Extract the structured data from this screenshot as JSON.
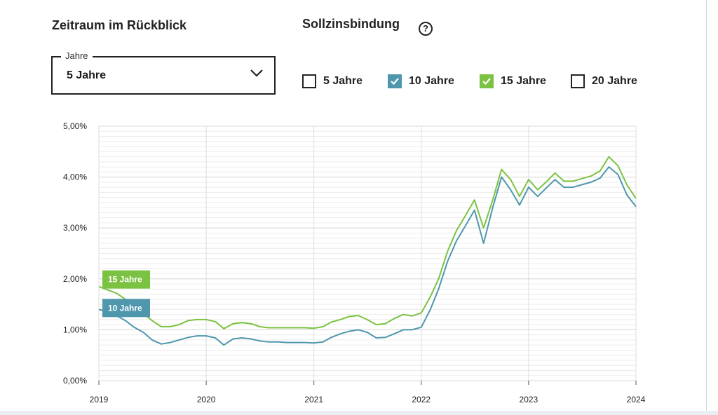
{
  "filters": {
    "range_heading": "Zeitraum im Rückblick",
    "select_legend": "Jahre",
    "select_value": "5 Jahre",
    "binding_heading": "Sollzinsbindung",
    "help_icon": "question-circle-icon",
    "checkboxes": [
      {
        "label": "5 Jahre",
        "checked": false,
        "color": "#ffffff"
      },
      {
        "label": "10 Jahre",
        "checked": true,
        "color": "#4f97ad"
      },
      {
        "label": "15 Jahre",
        "checked": true,
        "color": "#7cc242"
      },
      {
        "label": "20 Jahre",
        "checked": false,
        "color": "#ffffff"
      }
    ]
  },
  "chart_data": {
    "type": "line",
    "x_start": "2019-01-01",
    "x_end": "2024-01-01",
    "xticks": [
      "2019",
      "2020",
      "2021",
      "2022",
      "2023",
      "2024"
    ],
    "ylim": [
      0,
      5
    ],
    "yticks": [
      "0,00%",
      "1,00%",
      "2,00%",
      "3,00%",
      "4,00%",
      "5,00%"
    ],
    "grid": true,
    "series": [
      {
        "name": "15 Jahre",
        "color": "#7cc242",
        "points": [
          [
            "2019-01",
            1.85
          ],
          [
            "2019-02",
            1.78
          ],
          [
            "2019-03",
            1.72
          ],
          [
            "2019-04",
            1.6
          ],
          [
            "2019-05",
            1.48
          ],
          [
            "2019-06",
            1.32
          ],
          [
            "2019-07",
            1.18
          ],
          [
            "2019-08",
            1.06
          ],
          [
            "2019-09",
            1.06
          ],
          [
            "2019-10",
            1.1
          ],
          [
            "2019-11",
            1.18
          ],
          [
            "2019-12",
            1.2
          ],
          [
            "2020-01",
            1.2
          ],
          [
            "2020-02",
            1.16
          ],
          [
            "2020-03",
            1.02
          ],
          [
            "2020-04",
            1.12
          ],
          [
            "2020-05",
            1.14
          ],
          [
            "2020-06",
            1.12
          ],
          [
            "2020-07",
            1.06
          ],
          [
            "2020-08",
            1.04
          ],
          [
            "2020-09",
            1.04
          ],
          [
            "2020-10",
            1.04
          ],
          [
            "2020-11",
            1.04
          ],
          [
            "2020-12",
            1.04
          ],
          [
            "2021-01",
            1.03
          ],
          [
            "2021-02",
            1.06
          ],
          [
            "2021-03",
            1.15
          ],
          [
            "2021-04",
            1.2
          ],
          [
            "2021-05",
            1.26
          ],
          [
            "2021-06",
            1.28
          ],
          [
            "2021-07",
            1.2
          ],
          [
            "2021-08",
            1.1
          ],
          [
            "2021-09",
            1.12
          ],
          [
            "2021-10",
            1.22
          ],
          [
            "2021-11",
            1.3
          ],
          [
            "2021-12",
            1.27
          ],
          [
            "2022-01",
            1.33
          ],
          [
            "2022-02",
            1.65
          ],
          [
            "2022-03",
            2.0
          ],
          [
            "2022-04",
            2.55
          ],
          [
            "2022-05",
            2.95
          ],
          [
            "2022-06",
            3.25
          ],
          [
            "2022-07",
            3.55
          ],
          [
            "2022-08",
            3.0
          ],
          [
            "2022-09",
            3.55
          ],
          [
            "2022-10",
            4.15
          ],
          [
            "2022-11",
            3.95
          ],
          [
            "2022-12",
            3.62
          ],
          [
            "2023-01",
            3.95
          ],
          [
            "2023-02",
            3.75
          ],
          [
            "2023-03",
            3.9
          ],
          [
            "2023-04",
            4.08
          ],
          [
            "2023-05",
            3.92
          ],
          [
            "2023-06",
            3.92
          ],
          [
            "2023-07",
            3.97
          ],
          [
            "2023-08",
            4.02
          ],
          [
            "2023-09",
            4.12
          ],
          [
            "2023-10",
            4.4
          ],
          [
            "2023-11",
            4.22
          ],
          [
            "2023-12",
            3.85
          ],
          [
            "2024-01",
            3.58
          ]
        ]
      },
      {
        "name": "10 Jahre",
        "color": "#4f97ad",
        "points": [
          [
            "2019-01",
            1.4
          ],
          [
            "2019-02",
            1.35
          ],
          [
            "2019-03",
            1.28
          ],
          [
            "2019-04",
            1.18
          ],
          [
            "2019-05",
            1.05
          ],
          [
            "2019-06",
            0.95
          ],
          [
            "2019-07",
            0.8
          ],
          [
            "2019-08",
            0.72
          ],
          [
            "2019-09",
            0.75
          ],
          [
            "2019-10",
            0.8
          ],
          [
            "2019-11",
            0.85
          ],
          [
            "2019-12",
            0.88
          ],
          [
            "2020-01",
            0.88
          ],
          [
            "2020-02",
            0.84
          ],
          [
            "2020-03",
            0.7
          ],
          [
            "2020-04",
            0.82
          ],
          [
            "2020-05",
            0.84
          ],
          [
            "2020-06",
            0.82
          ],
          [
            "2020-07",
            0.78
          ],
          [
            "2020-08",
            0.76
          ],
          [
            "2020-09",
            0.76
          ],
          [
            "2020-10",
            0.75
          ],
          [
            "2020-11",
            0.75
          ],
          [
            "2020-12",
            0.75
          ],
          [
            "2021-01",
            0.74
          ],
          [
            "2021-02",
            0.76
          ],
          [
            "2021-03",
            0.85
          ],
          [
            "2021-04",
            0.92
          ],
          [
            "2021-05",
            0.97
          ],
          [
            "2021-06",
            1.0
          ],
          [
            "2021-07",
            0.95
          ],
          [
            "2021-08",
            0.84
          ],
          [
            "2021-09",
            0.85
          ],
          [
            "2021-10",
            0.92
          ],
          [
            "2021-11",
            1.0
          ],
          [
            "2021-12",
            1.0
          ],
          [
            "2022-01",
            1.05
          ],
          [
            "2022-02",
            1.4
          ],
          [
            "2022-03",
            1.8
          ],
          [
            "2022-04",
            2.35
          ],
          [
            "2022-05",
            2.75
          ],
          [
            "2022-06",
            3.05
          ],
          [
            "2022-07",
            3.35
          ],
          [
            "2022-08",
            2.7
          ],
          [
            "2022-09",
            3.4
          ],
          [
            "2022-10",
            4.0
          ],
          [
            "2022-11",
            3.75
          ],
          [
            "2022-12",
            3.45
          ],
          [
            "2023-01",
            3.8
          ],
          [
            "2023-02",
            3.62
          ],
          [
            "2023-03",
            3.78
          ],
          [
            "2023-04",
            3.95
          ],
          [
            "2023-05",
            3.8
          ],
          [
            "2023-06",
            3.8
          ],
          [
            "2023-07",
            3.85
          ],
          [
            "2023-08",
            3.9
          ],
          [
            "2023-09",
            3.98
          ],
          [
            "2023-10",
            4.2
          ],
          [
            "2023-11",
            4.05
          ],
          [
            "2023-12",
            3.65
          ],
          [
            "2024-01",
            3.42
          ]
        ]
      }
    ],
    "series_labels": [
      "15 Jahre",
      "10 Jahre"
    ]
  }
}
